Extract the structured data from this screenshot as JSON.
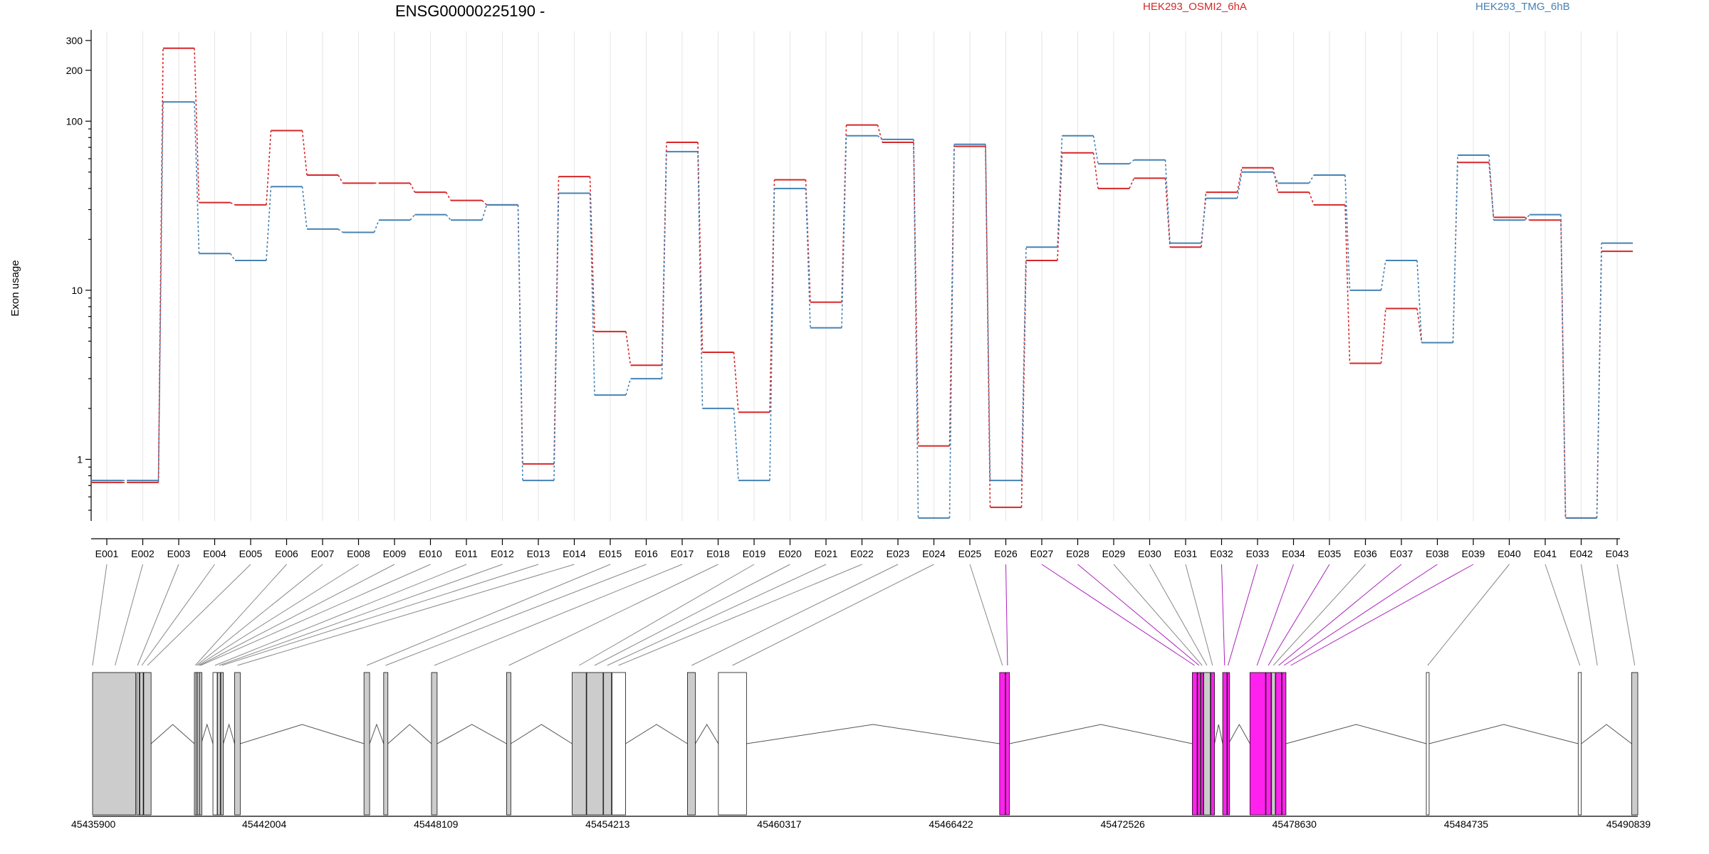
{
  "chart_data": {
    "type": "line",
    "title": "ENSG00000225190 -",
    "ylabel": "Exon usage",
    "yscale": "log",
    "ylim": [
      0.4,
      340
    ],
    "yticks": [
      1,
      10,
      100,
      200,
      300
    ],
    "categories": [
      "E001",
      "E002",
      "E003",
      "E004",
      "E005",
      "E006",
      "E007",
      "E008",
      "E009",
      "E010",
      "E011",
      "E012",
      "E013",
      "E014",
      "E015",
      "E016",
      "E017",
      "E018",
      "E019",
      "E020",
      "E021",
      "E022",
      "E023",
      "E024",
      "E025",
      "E026",
      "E027",
      "E028",
      "E029",
      "E030",
      "E031",
      "E032",
      "E033",
      "E034",
      "E035",
      "E036",
      "E037",
      "E038",
      "E039",
      "E040",
      "E041",
      "E042",
      "E043"
    ],
    "series": [
      {
        "name": "HEK293_OSMI2_6hA",
        "color": "#d62728",
        "values": [
          0.73,
          0.73,
          270,
          33,
          32,
          88,
          48,
          43,
          43,
          38,
          34,
          32,
          0.94,
          47,
          5.7,
          3.6,
          75,
          4.3,
          1.9,
          45,
          8.5,
          95,
          75,
          1.2,
          71,
          0.52,
          15,
          65,
          40,
          46,
          18,
          38,
          53,
          38,
          32,
          3.7,
          7.8,
          4.9,
          57,
          27,
          26,
          0.45,
          17
        ]
      },
      {
        "name": "HEK293_TMG_6hB",
        "color": "#4682b4",
        "values": [
          0.75,
          0.75,
          130,
          16.5,
          15,
          41,
          23,
          22,
          26,
          28,
          26,
          32,
          0.75,
          37.5,
          2.4,
          3,
          66,
          2,
          0.75,
          40,
          6,
          82,
          78,
          0.45,
          73,
          0.75,
          18,
          82,
          56,
          59,
          19,
          35,
          50,
          43,
          48,
          10,
          15,
          4.9,
          63,
          26,
          28,
          0.45,
          19
        ]
      }
    ],
    "genomic_ticks": [
      "45435900",
      "45442004",
      "45448109",
      "45454213",
      "45460317",
      "45466422",
      "45472526",
      "45478630",
      "45484735",
      "45490839"
    ],
    "genomic_range": [
      45435900,
      45490839
    ],
    "exon_colors": [
      "#cccccc",
      "#ff22ee",
      "#ffffff"
    ],
    "exons": [
      {
        "start": 45435900,
        "end": 45437430,
        "fill": "#cccccc"
      },
      {
        "start": 45437470,
        "end": 45437560,
        "fill": "#cccccc"
      },
      {
        "start": 45437580,
        "end": 45437700,
        "fill": "#cccccc"
      },
      {
        "start": 45437720,
        "end": 45437980,
        "fill": "#cccccc"
      },
      {
        "start": 45439520,
        "end": 45439560,
        "fill": "#cccccc"
      },
      {
        "start": 45439580,
        "end": 45439620,
        "fill": "#cccccc"
      },
      {
        "start": 45439640,
        "end": 45439690,
        "fill": "#cccccc"
      },
      {
        "start": 45439710,
        "end": 45439760,
        "fill": "#cccccc"
      },
      {
        "start": 45440180,
        "end": 45440330,
        "fill": "#ffffff"
      },
      {
        "start": 45440340,
        "end": 45440440,
        "fill": "#cccccc"
      },
      {
        "start": 45440460,
        "end": 45440550,
        "fill": "#cccccc"
      },
      {
        "start": 45440950,
        "end": 45441150,
        "fill": "#cccccc"
      },
      {
        "start": 45445550,
        "end": 45445750,
        "fill": "#cccccc"
      },
      {
        "start": 45446250,
        "end": 45446400,
        "fill": "#cccccc"
      },
      {
        "start": 45447950,
        "end": 45448150,
        "fill": "#cccccc"
      },
      {
        "start": 45450620,
        "end": 45450770,
        "fill": "#cccccc"
      },
      {
        "start": 45452950,
        "end": 45453450,
        "fill": "#cccccc"
      },
      {
        "start": 45453470,
        "end": 45454050,
        "fill": "#cccccc"
      },
      {
        "start": 45454070,
        "end": 45454350,
        "fill": "#cccccc"
      },
      {
        "start": 45454370,
        "end": 45454850,
        "fill": "#ffffff"
      },
      {
        "start": 45457050,
        "end": 45457330,
        "fill": "#cccccc"
      },
      {
        "start": 45458150,
        "end": 45459150,
        "fill": "#ffffff"
      },
      {
        "start": 45468150,
        "end": 45468350,
        "fill": "#ff22ee"
      },
      {
        "start": 45468370,
        "end": 45468500,
        "fill": "#ff22ee"
      },
      {
        "start": 45475000,
        "end": 45475170,
        "fill": "#ff22ee"
      },
      {
        "start": 45475190,
        "end": 45475290,
        "fill": "#ff22ee"
      },
      {
        "start": 45475310,
        "end": 45475390,
        "fill": "#ff22ee"
      },
      {
        "start": 45475410,
        "end": 45475640,
        "fill": "#cccccc"
      },
      {
        "start": 45475660,
        "end": 45475790,
        "fill": "#ff22ee"
      },
      {
        "start": 45476080,
        "end": 45476230,
        "fill": "#ff22ee"
      },
      {
        "start": 45476250,
        "end": 45476290,
        "fill": "#ff22ee"
      },
      {
        "start": 45477050,
        "end": 45477600,
        "fill": "#ff22ee"
      },
      {
        "start": 45477620,
        "end": 45477800,
        "fill": "#ff22ee"
      },
      {
        "start": 45477820,
        "end": 45477950,
        "fill": "#cccccc"
      },
      {
        "start": 45477970,
        "end": 45478170,
        "fill": "#ff22ee"
      },
      {
        "start": 45478190,
        "end": 45478330,
        "fill": "#ff22ee"
      },
      {
        "start": 45483320,
        "end": 45483420,
        "fill": "#ffffff"
      },
      {
        "start": 45488720,
        "end": 45488830,
        "fill": "#ffffff"
      },
      {
        "start": 45490620,
        "end": 45490839,
        "fill": "#cccccc"
      }
    ],
    "exon_map": [
      {
        "pos": 45435900,
        "color": "#888888"
      },
      {
        "pos": 45436700,
        "color": "#888888"
      },
      {
        "pos": 45437500,
        "color": "#888888"
      },
      {
        "pos": 45437650,
        "color": "#888888"
      },
      {
        "pos": 45437850,
        "color": "#888888"
      },
      {
        "pos": 45439550,
        "color": "#888888"
      },
      {
        "pos": 45439600,
        "color": "#888888"
      },
      {
        "pos": 45439650,
        "color": "#888888"
      },
      {
        "pos": 45439700,
        "color": "#888888"
      },
      {
        "pos": 45439740,
        "color": "#888888"
      },
      {
        "pos": 45440250,
        "color": "#888888"
      },
      {
        "pos": 45440400,
        "color": "#888888"
      },
      {
        "pos": 45440500,
        "color": "#888888"
      },
      {
        "pos": 45441050,
        "color": "#888888"
      },
      {
        "pos": 45445650,
        "color": "#888888"
      },
      {
        "pos": 45446320,
        "color": "#888888"
      },
      {
        "pos": 45448050,
        "color": "#888888"
      },
      {
        "pos": 45450700,
        "color": "#888888"
      },
      {
        "pos": 45453200,
        "color": "#888888"
      },
      {
        "pos": 45453750,
        "color": "#888888"
      },
      {
        "pos": 45454200,
        "color": "#888888"
      },
      {
        "pos": 45454600,
        "color": "#888888"
      },
      {
        "pos": 45457200,
        "color": "#888888"
      },
      {
        "pos": 45458650,
        "color": "#888888"
      },
      {
        "pos": 45468250,
        "color": "#888888"
      },
      {
        "pos": 45468430,
        "color": "#aa22bb"
      },
      {
        "pos": 45475080,
        "color": "#aa22bb"
      },
      {
        "pos": 45475240,
        "color": "#aa22bb"
      },
      {
        "pos": 45475350,
        "color": "#888888"
      },
      {
        "pos": 45475520,
        "color": "#888888"
      },
      {
        "pos": 45475720,
        "color": "#888888"
      },
      {
        "pos": 45476150,
        "color": "#aa22bb"
      },
      {
        "pos": 45476270,
        "color": "#aa22bb"
      },
      {
        "pos": 45477300,
        "color": "#aa22bb"
      },
      {
        "pos": 45477700,
        "color": "#aa22bb"
      },
      {
        "pos": 45477880,
        "color": "#888888"
      },
      {
        "pos": 45478070,
        "color": "#aa22bb"
      },
      {
        "pos": 45478260,
        "color": "#aa22bb"
      },
      {
        "pos": 45478500,
        "color": "#aa22bb"
      },
      {
        "pos": 45483370,
        "color": "#888888"
      },
      {
        "pos": 45488780,
        "color": "#888888"
      },
      {
        "pos": 45489400,
        "color": "#888888"
      },
      {
        "pos": 45490730,
        "color": "#888888"
      }
    ]
  }
}
